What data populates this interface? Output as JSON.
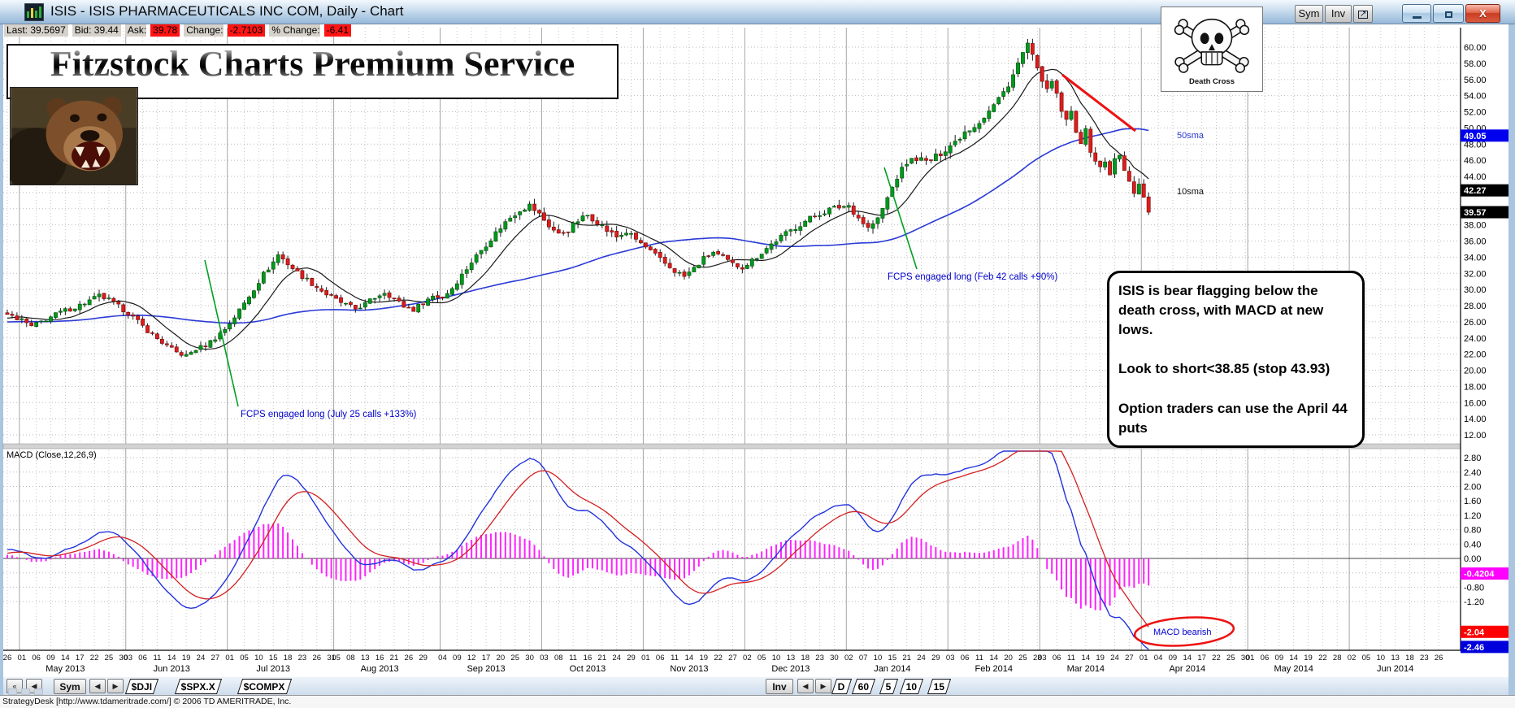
{
  "window": {
    "title": "ISIS - ISIS PHARMACEUTICALS INC COM, Daily - Chart",
    "sym_label": "Sym",
    "inv_label": "Inv"
  },
  "quote_bar": {
    "last_label": "Last:",
    "last_value": "39.5697",
    "bid_label": "Bid:",
    "bid_value": "39.44",
    "ask_label": "Ask:",
    "ask_value": "39.78",
    "change_label": "Change:",
    "change_value": "-2.7103",
    "pct_change_label": "% Change:",
    "pct_change_value": "-6.41"
  },
  "banner": {
    "text": "Fitzstock Charts Premium Service"
  },
  "death_cross_badge": {
    "label": "Death Cross"
  },
  "note_box": {
    "para1": "ISIS is bear flagging below the death cross, with MACD at new lows.",
    "para2": "Look to short<38.85 (stop 43.93)",
    "para3": "Option traders can use the April 44 puts"
  },
  "annotations": {
    "long1": "FCPS engaged long (July 25 calls +133%)",
    "long2": "FCPS engaged long (Feb 42 calls +90%)",
    "sma50_label": "50sma",
    "sma10_label": "10sma",
    "macd_bearish": "MACD bearish"
  },
  "macd_panel_label": "MACD (Close,12,26,9)",
  "tabs_bottom": {
    "sym_label": "Sym",
    "symbol_tabs": [
      "$DJI",
      "$SPX.X",
      "$COMPX"
    ],
    "inv_label": "Inv",
    "interval_tabs": [
      "D",
      "60",
      "5",
      "10",
      "15"
    ]
  },
  "status_bar": {
    "text": "StrategyDesk [http://www.tdameritrade.com/] © 2006 TD AMERITRADE, Inc."
  },
  "chart_data": {
    "type": "candlestick+macd",
    "symbol": "ISIS",
    "timeframe": "Daily",
    "indicators": {
      "sma_periods": [
        10,
        50
      ],
      "macd_params": [
        12,
        26,
        9
      ]
    },
    "price_axis": {
      "min": 12,
      "max": 60,
      "step": 2,
      "highlights": [
        {
          "value": 49.05,
          "label": "49.05",
          "color": "#0000ee",
          "meaning": "50sma"
        },
        {
          "value": 42.27,
          "label": "42.27",
          "color": "#000000",
          "meaning": "10sma"
        },
        {
          "value": 39.57,
          "label": "39.57",
          "color": "#000000",
          "meaning": "last"
        }
      ]
    },
    "macd_axis": {
      "min": -2.46,
      "max": 2.8,
      "step": 0.4,
      "highlights": [
        {
          "value": -0.4204,
          "label": "-0.4204",
          "color": "#ff00ff",
          "meaning": "histogram"
        },
        {
          "value": -2.04,
          "label": "-2.04",
          "color": "#ff0000",
          "meaning": "signal"
        },
        {
          "value": -2.46,
          "label": "-2.46",
          "color": "#0000dd",
          "meaning": "macd"
        }
      ]
    },
    "last_close": 39.57,
    "data_end_slot": 236,
    "slots_total": 299,
    "lead_tick": {
      "slot": 0,
      "label": "26"
    },
    "months": [
      {
        "label": "May 2013",
        "start": 3,
        "days": [
          "01",
          "06",
          "09",
          "14",
          "17",
          "22",
          "25",
          "30"
        ]
      },
      {
        "label": "Jun 2013",
        "start": 25,
        "days": [
          "03",
          "06",
          "11",
          "14",
          "19",
          "24",
          "27"
        ]
      },
      {
        "label": "Jul 2013",
        "start": 46,
        "days": [
          "01",
          "05",
          "10",
          "15",
          "18",
          "23",
          "26",
          "31"
        ]
      },
      {
        "label": "Aug 2013",
        "start": 68,
        "days": [
          "05",
          "08",
          "13",
          "16",
          "21",
          "26",
          "29"
        ]
      },
      {
        "label": "Sep 2013",
        "start": 90,
        "days": [
          "04",
          "09",
          "12",
          "17",
          "20",
          "25",
          "30"
        ]
      },
      {
        "label": "Oct 2013",
        "start": 111,
        "days": [
          "03",
          "08",
          "11",
          "16",
          "21",
          "24",
          "29"
        ]
      },
      {
        "label": "Nov 2013",
        "start": 132,
        "days": [
          "01",
          "06",
          "11",
          "14",
          "19",
          "22",
          "27"
        ]
      },
      {
        "label": "Dec 2013",
        "start": 153,
        "days": [
          "02",
          "05",
          "10",
          "13",
          "18",
          "23",
          "30"
        ]
      },
      {
        "label": "Jan 2014",
        "start": 174,
        "days": [
          "02",
          "07",
          "10",
          "15",
          "21",
          "24",
          "29"
        ]
      },
      {
        "label": "Feb 2014",
        "start": 195,
        "days": [
          "03",
          "06",
          "11",
          "14",
          "20",
          "25",
          "28"
        ]
      },
      {
        "label": "Mar 2014",
        "start": 214,
        "days": [
          "03",
          "06",
          "11",
          "14",
          "19",
          "24",
          "27"
        ]
      },
      {
        "label": "Apr 2014",
        "start": 235,
        "days": [
          "01",
          "04",
          "09",
          "14",
          "17",
          "22",
          "25",
          "30"
        ]
      },
      {
        "label": "May 2014",
        "start": 257,
        "days": [
          "01",
          "06",
          "09",
          "14",
          "19",
          "22",
          "28"
        ]
      },
      {
        "label": "Jun 2014",
        "start": 278,
        "days": [
          "02",
          "05",
          "10",
          "13",
          "18",
          "23",
          "26"
        ]
      }
    ],
    "close_waypoints": [
      [
        -50,
        25.6
      ],
      [
        -40,
        26.2
      ],
      [
        -30,
        25.4
      ],
      [
        -20,
        26.3
      ],
      [
        -10,
        25.8
      ],
      [
        -4,
        26.6
      ],
      [
        0,
        26.9
      ],
      [
        3,
        26.2
      ],
      [
        5,
        25.4
      ],
      [
        8,
        26.3
      ],
      [
        11,
        27.2
      ],
      [
        14,
        27.8
      ],
      [
        17,
        28.6
      ],
      [
        19,
        29.2
      ],
      [
        21,
        28.7
      ],
      [
        23,
        27.9
      ],
      [
        25,
        27.1
      ],
      [
        27,
        26.0
      ],
      [
        29,
        24.9
      ],
      [
        31,
        23.9
      ],
      [
        33,
        23.0
      ],
      [
        35,
        22.2
      ],
      [
        37,
        21.8
      ],
      [
        39,
        22.6
      ],
      [
        41,
        23.1
      ],
      [
        43,
        24.0
      ],
      [
        45,
        25.1
      ],
      [
        47,
        26.6
      ],
      [
        49,
        28.3
      ],
      [
        51,
        30.1
      ],
      [
        53,
        31.9
      ],
      [
        55,
        33.4
      ],
      [
        56,
        34.3
      ],
      [
        58,
        33.2
      ],
      [
        60,
        32.1
      ],
      [
        62,
        31.2
      ],
      [
        64,
        30.3
      ],
      [
        66,
        29.4
      ],
      [
        68,
        28.7
      ],
      [
        70,
        28.1
      ],
      [
        72,
        27.6
      ],
      [
        74,
        28.2
      ],
      [
        76,
        29.0
      ],
      [
        78,
        29.7
      ],
      [
        80,
        28.9
      ],
      [
        82,
        27.9
      ],
      [
        84,
        27.5
      ],
      [
        86,
        28.4
      ],
      [
        88,
        29.2
      ],
      [
        90,
        29.0
      ],
      [
        92,
        30.2
      ],
      [
        94,
        31.8
      ],
      [
        96,
        33.4
      ],
      [
        98,
        34.9
      ],
      [
        100,
        36.3
      ],
      [
        102,
        37.7
      ],
      [
        104,
        38.9
      ],
      [
        106,
        39.9
      ],
      [
        108,
        40.4
      ],
      [
        110,
        39.3
      ],
      [
        112,
        37.9
      ],
      [
        114,
        36.8
      ],
      [
        116,
        37.4
      ],
      [
        118,
        38.5
      ],
      [
        120,
        39.2
      ],
      [
        122,
        38.4
      ],
      [
        124,
        37.3
      ],
      [
        126,
        36.5
      ],
      [
        128,
        37.1
      ],
      [
        130,
        36.2
      ],
      [
        132,
        35.2
      ],
      [
        134,
        34.2
      ],
      [
        136,
        33.2
      ],
      [
        138,
        32.3
      ],
      [
        140,
        31.6
      ],
      [
        142,
        32.6
      ],
      [
        144,
        33.8
      ],
      [
        146,
        34.6
      ],
      [
        148,
        33.9
      ],
      [
        150,
        33.1
      ],
      [
        152,
        32.8
      ],
      [
        154,
        33.6
      ],
      [
        156,
        34.6
      ],
      [
        158,
        35.6
      ],
      [
        160,
        36.5
      ],
      [
        162,
        37.3
      ],
      [
        164,
        38.1
      ],
      [
        166,
        38.8
      ],
      [
        168,
        39.4
      ],
      [
        170,
        39.9
      ],
      [
        172,
        40.2
      ],
      [
        174,
        40.4
      ],
      [
        176,
        38.9
      ],
      [
        178,
        37.6
      ],
      [
        180,
        38.7
      ],
      [
        182,
        41.3
      ],
      [
        184,
        43.9
      ],
      [
        186,
        45.7
      ],
      [
        188,
        46.3
      ],
      [
        190,
        45.8
      ],
      [
        192,
        46.4
      ],
      [
        194,
        47.4
      ],
      [
        196,
        48.3
      ],
      [
        198,
        49.6
      ],
      [
        200,
        50.3
      ],
      [
        202,
        51.4
      ],
      [
        204,
        52.8
      ],
      [
        206,
        54.4
      ],
      [
        208,
        56.6
      ],
      [
        210,
        59.2
      ],
      [
        211,
        60.4
      ],
      [
        212,
        58.7
      ],
      [
        213,
        57.0
      ],
      [
        214,
        56.2
      ],
      [
        215,
        54.4
      ],
      [
        216,
        55.7
      ],
      [
        217,
        53.9
      ],
      [
        218,
        52.2
      ],
      [
        219,
        50.7
      ],
      [
        220,
        51.9
      ],
      [
        221,
        49.8
      ],
      [
        222,
        48.4
      ],
      [
        223,
        49.5
      ],
      [
        224,
        47.3
      ],
      [
        225,
        46.0
      ],
      [
        226,
        45.0
      ],
      [
        227,
        45.8
      ],
      [
        228,
        44.4
      ],
      [
        229,
        46.0
      ],
      [
        230,
        46.5
      ],
      [
        231,
        44.7
      ],
      [
        232,
        43.2
      ],
      [
        233,
        42.1
      ],
      [
        234,
        43.3
      ],
      [
        235,
        41.3
      ],
      [
        236,
        39.6
      ]
    ],
    "colors": {
      "up": "#00991c",
      "up_edge": "#00490c",
      "down": "#dd1c1c",
      "down_edge": "#6e0a0a",
      "wick": "#1c1c1c",
      "sma10": "#1a1a1a",
      "sma50": "#2b3bd6",
      "macd_line": "#2233dd",
      "signal_line": "#d42020",
      "histogram": "#ff22ff",
      "annotation_green": "#00a020",
      "annotation_red": "#ee1111",
      "annotation_blue": "#0000cc"
    }
  }
}
